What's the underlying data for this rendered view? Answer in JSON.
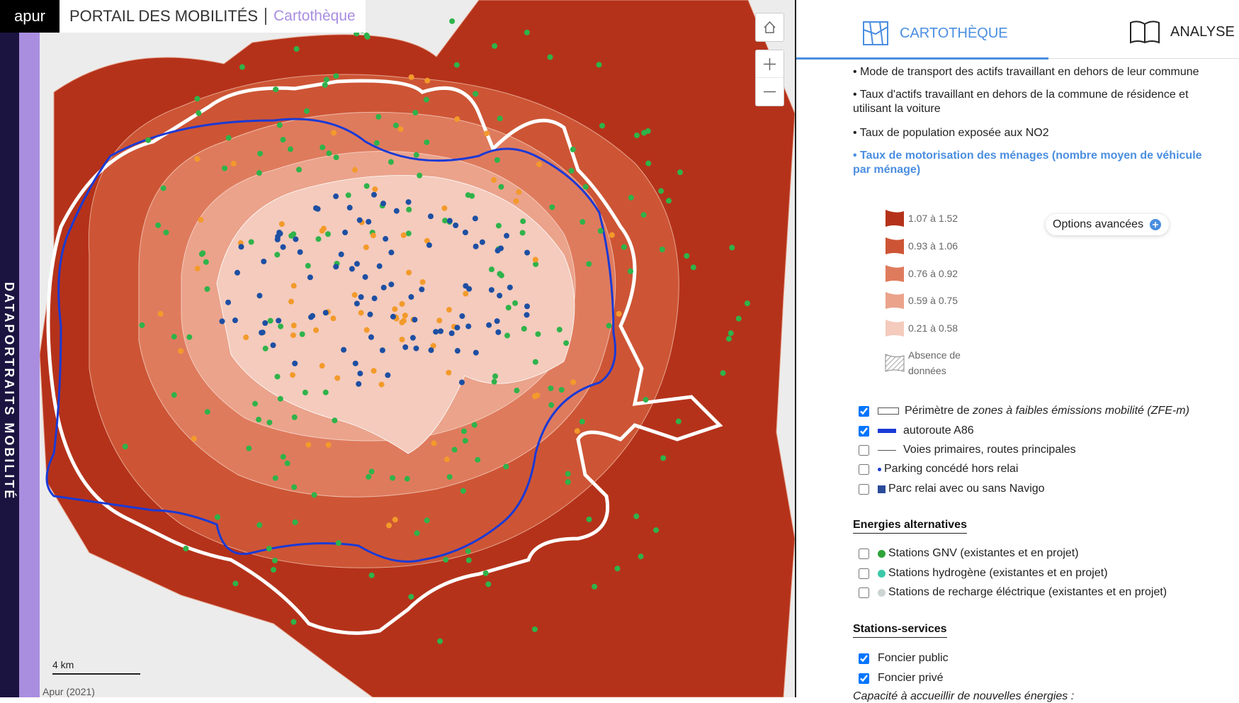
{
  "sidebar": {
    "logo": "apur",
    "vertical_title": "DATAPORTRAITS MOBILITÉ"
  },
  "header": {
    "title": "PORTAIL DES MOBILITÉS",
    "subtitle": "Cartothèque"
  },
  "map": {
    "scale": "4 km",
    "attribution": "Apur (2021)"
  },
  "tabs": [
    "CARTOTHÈQUE",
    "ANALYSE"
  ],
  "indicators": [
    {
      "text": "• Mode de transport des actifs travaillant en dehors de leur commune",
      "active": false
    },
    {
      "text": "• Taux d'actifs travaillant en dehors de la commune de résidence et utilisant la voiture",
      "active": false
    },
    {
      "text": "• Taux de population exposée aux NO2",
      "active": false
    },
    {
      "text": "• Taux de motorisation des ménages (nombre moyen de véhicule par ménage)",
      "active": true
    }
  ],
  "legend": [
    {
      "label": "1.07 à 1.52",
      "color": "#b5321a"
    },
    {
      "label": "0.93 à 1.06",
      "color": "#cd5535"
    },
    {
      "label": "0.76 à 0.92",
      "color": "#df7b5d"
    },
    {
      "label": "0.59 à 0.75",
      "color": "#eba38b"
    },
    {
      "label": "0.21 à 0.58",
      "color": "#f4cbbd"
    },
    {
      "label": "Absence de données"
    }
  ],
  "options_button": "Options avancées",
  "layers": [
    {
      "label": "Périmètre de ",
      "label_em": "zones à faibles émissions mobilité (ZFE-m)",
      "checked": true
    },
    {
      "label": "autoroute A86",
      "checked": true
    },
    {
      "label": "Voies primaires, routes principales",
      "checked": false
    },
    {
      "label": "Parking concédé hors relai",
      "checked": false
    },
    {
      "label": "Parc relai avec ou sans Navigo",
      "checked": false
    }
  ],
  "sections": [
    {
      "title": "Energies alternatives",
      "items": [
        {
          "label": "Stations GNV (existantes et en projet)",
          "checked": false
        },
        {
          "label": "Stations hydrogène (existantes et en projet)",
          "checked": false
        },
        {
          "label": "Stations de recharge éléctrique (existantes et en projet)",
          "checked": false
        }
      ]
    },
    {
      "title": "Stations-services",
      "items": [
        {
          "label": "Foncier public",
          "checked": true
        },
        {
          "label": "Foncier privé",
          "checked": true
        }
      ],
      "note": "Capacité à accueillir de nouvelles énergies :"
    }
  ]
}
